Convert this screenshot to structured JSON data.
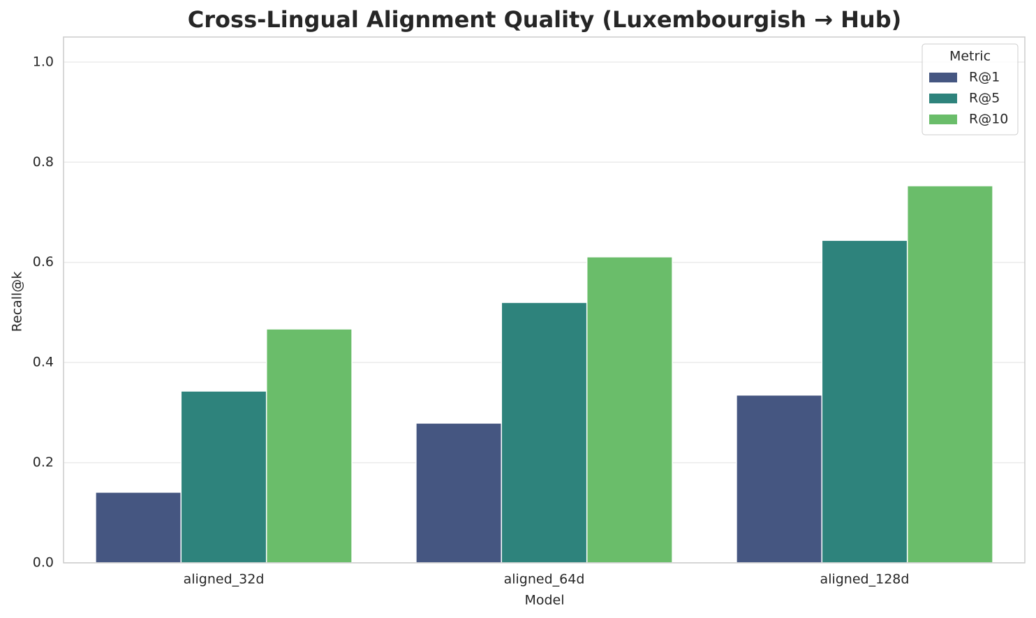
{
  "chart_data": {
    "type": "bar",
    "title": "Cross-Lingual Alignment Quality (Luxembourgish → Hub)",
    "x_label": "Model",
    "y_label": "Recall@k",
    "categories": [
      "aligned_32d",
      "aligned_64d",
      "aligned_128d"
    ],
    "series": [
      {
        "name": "R@1",
        "color": "#455681",
        "values": [
          0.141,
          0.279,
          0.335
        ]
      },
      {
        "name": "R@5",
        "color": "#2e837c",
        "values": [
          0.343,
          0.52,
          0.644
        ]
      },
      {
        "name": "R@10",
        "color": "#6abd6a",
        "values": [
          0.467,
          0.611,
          0.753
        ]
      }
    ],
    "legend_title": "Metric",
    "legend_position": "upper right",
    "ylim": [
      0,
      1.05
    ],
    "yticks": [
      {
        "value": 0,
        "label": "0.0"
      },
      0.2,
      0.4,
      0.6,
      0.8,
      {
        "value": 1,
        "label": "1.0"
      }
    ],
    "grid": true
  }
}
